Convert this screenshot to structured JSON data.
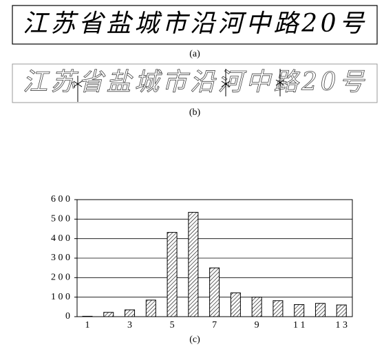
{
  "panels": [
    {
      "handwriting": "江苏省盐城市沿河中路20号",
      "caption": "(a)"
    },
    {
      "handwriting": "江苏省盐城市沿河中路20号",
      "caption": "(b)"
    }
  ],
  "chart_data": {
    "type": "bar",
    "caption": "(c)",
    "categories": [
      "1",
      null,
      "3",
      null,
      "5",
      null,
      "7",
      null,
      "9",
      null,
      "1 1",
      null,
      "1 3"
    ],
    "values": [
      2,
      22,
      35,
      85,
      432,
      535,
      250,
      122,
      100,
      82,
      62,
      68,
      60
    ],
    "ylim": [
      0,
      600
    ],
    "yticks": [
      0,
      {
        "value": 100,
        "label": "1 0 0"
      },
      {
        "value": 200,
        "label": "2 0 0"
      },
      {
        "value": 300,
        "label": "3 0 0"
      },
      {
        "value": 400,
        "label": "4 0 0"
      },
      {
        "value": 500,
        "label": "5 0 0"
      },
      {
        "value": 600,
        "label": "6 0 0"
      }
    ],
    "grid": true,
    "color": "#000000"
  }
}
